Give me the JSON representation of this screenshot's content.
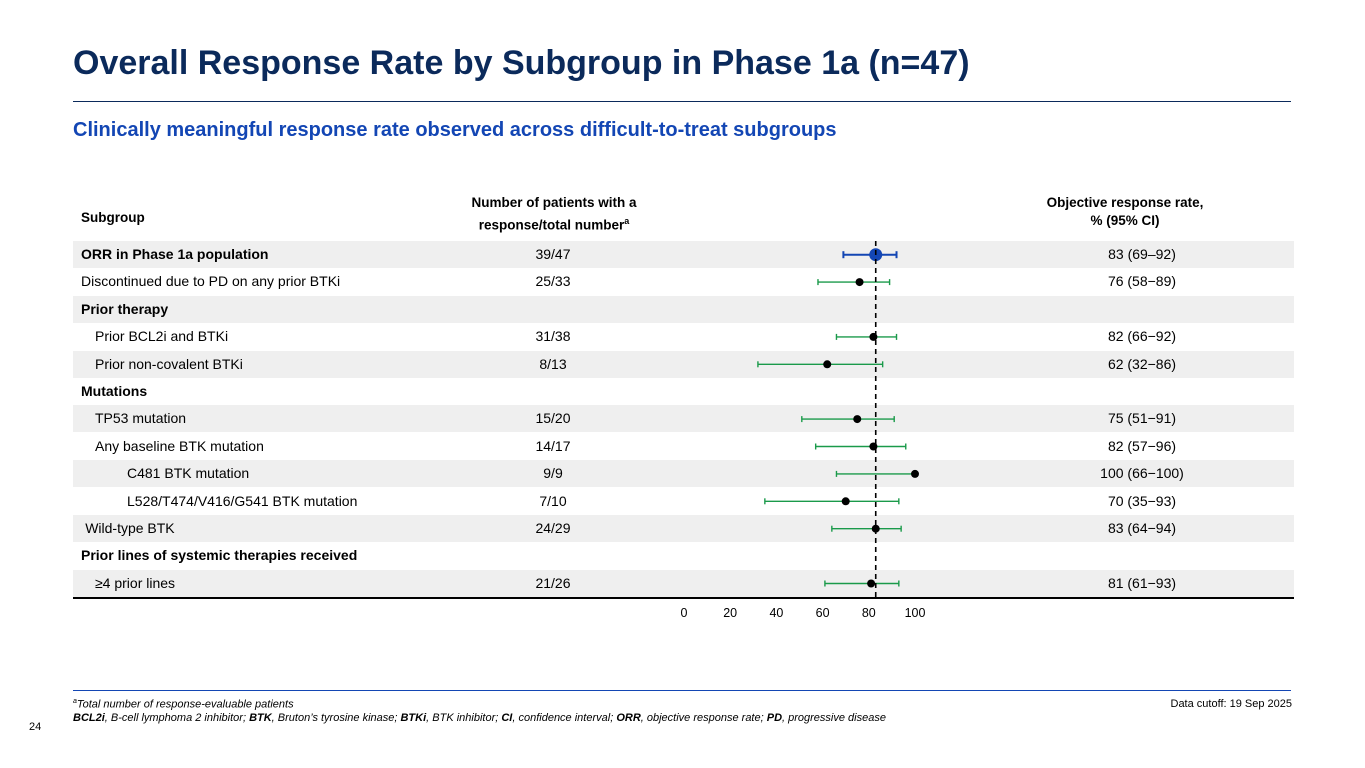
{
  "title": "Overall Response Rate by Subgroup in Phase 1a (n=47)",
  "subtitle": "Clinically meaningful response rate observed across difficult-to-treat subgroups",
  "columns": {
    "subgroup": "Subgroup",
    "number_line1": "Number of patients with a",
    "number_line2": "response/total number",
    "number_sup": "a",
    "orr_line1": "Objective response rate,",
    "orr_line2": "% (95% CI)"
  },
  "rows": [
    {
      "label": "ORR in Phase 1a population",
      "bold": true,
      "indent": 0,
      "n": "39/47",
      "orr_text": "83 (69–92)"
    },
    {
      "label": "Discontinued due to PD on any prior BTKi",
      "bold": false,
      "indent": 0,
      "n": "25/33",
      "orr_text": "76 (58−89)"
    },
    {
      "label": "Prior therapy",
      "bold": true,
      "indent": 0,
      "n": "",
      "orr_text": ""
    },
    {
      "label": "Prior BCL2i and BTKi",
      "bold": false,
      "indent": 1,
      "n": "31/38",
      "orr_text": "82 (66−92)"
    },
    {
      "label": "Prior non-covalent BTKi",
      "bold": false,
      "indent": 1,
      "n": "8/13",
      "orr_text": "62 (32−86)"
    },
    {
      "label": "Mutations",
      "bold": true,
      "indent": 0,
      "n": "",
      "orr_text": ""
    },
    {
      "label": "TP53 mutation",
      "bold": false,
      "indent": 1,
      "n": "15/20",
      "orr_text": "75 (51−91)"
    },
    {
      "label": "Any baseline BTK mutation",
      "bold": false,
      "indent": 1,
      "n": "14/17",
      "orr_text": "82 (57−96)"
    },
    {
      "label": "C481 BTK mutation",
      "bold": false,
      "indent": 2,
      "n": "9/9",
      "orr_text": "100 (66−100)"
    },
    {
      "label": "L528/T474/V416/G541 BTK mutation",
      "bold": false,
      "indent": 2,
      "n": "7/10",
      "orr_text": "70 (35−93)"
    },
    {
      "label": "Wild-type BTK",
      "bold": false,
      "indent": 0.3,
      "n": "24/29",
      "orr_text": "83 (64−94)"
    },
    {
      "label": "Prior lines of systemic therapies received",
      "bold": true,
      "indent": 0,
      "n": "",
      "orr_text": ""
    },
    {
      "label": "≥4 prior lines",
      "bold": false,
      "indent": 1,
      "n": "21/26",
      "orr_text": "81 (61−93)"
    }
  ],
  "chart_data": {
    "type": "forest",
    "xlim": [
      0,
      100
    ],
    "ticks": [
      0,
      20,
      40,
      60,
      80,
      100
    ],
    "reference_line": 83,
    "colors": {
      "overall": "#1346b4",
      "subgroup_ci": "#1a9a4a",
      "point": "#000000",
      "reference": "#000000"
    },
    "points": [
      {
        "row": 0,
        "estimate": 83,
        "lower": 69,
        "upper": 92,
        "overall": true
      },
      {
        "row": 1,
        "estimate": 76,
        "lower": 58,
        "upper": 89
      },
      {
        "row": 3,
        "estimate": 82,
        "lower": 66,
        "upper": 92
      },
      {
        "row": 4,
        "estimate": 62,
        "lower": 32,
        "upper": 86
      },
      {
        "row": 6,
        "estimate": 75,
        "lower": 51,
        "upper": 91
      },
      {
        "row": 7,
        "estimate": 82,
        "lower": 57,
        "upper": 96
      },
      {
        "row": 8,
        "estimate": 100,
        "lower": 66,
        "upper": 100
      },
      {
        "row": 9,
        "estimate": 70,
        "lower": 35,
        "upper": 93
      },
      {
        "row": 10,
        "estimate": 83,
        "lower": 64,
        "upper": 94
      },
      {
        "row": 12,
        "estimate": 81,
        "lower": 61,
        "upper": 93
      }
    ]
  },
  "footnotes": {
    "note_sup": "a",
    "note_text": "Total number of response-evaluable patients",
    "abbreviations": [
      {
        "term": "BCL2i",
        "definition": ", B-cell lymphoma 2 inhibitor; "
      },
      {
        "term": "BTK",
        "definition": ", Bruton’s tyrosine kinase; "
      },
      {
        "term": "BTKi",
        "definition": ", BTK inhibitor; "
      },
      {
        "term": "CI",
        "definition": ", confidence interval; "
      },
      {
        "term": "ORR",
        "definition": ", objective response rate; "
      },
      {
        "term": "PD",
        "definition": ", progressive disease"
      }
    ]
  },
  "data_cutoff": "Data cutoff: 19 Sep 2025",
  "page_number": "24"
}
